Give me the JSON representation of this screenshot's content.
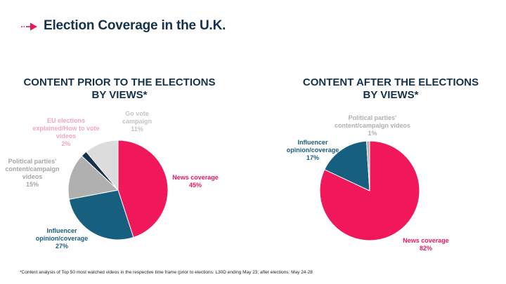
{
  "slide": {
    "title": "Election Coverage in the U.K.",
    "accent_color": "#e8174f",
    "icon": "arrow-right-icon"
  },
  "footnote": "*Content analysis of Top 50 most watched videos in the respective time frame (prior to elections: L30D ending May 23;  after elections: May 24-28",
  "chart_data": [
    {
      "type": "pie",
      "title": "CONTENT PRIOR TO THE ELECTIONS",
      "title_line2": "BY VIEWS*",
      "slices": [
        {
          "key": "news",
          "label_lines": [
            "News coverage"
          ],
          "value": 45,
          "value_label": "45%",
          "color": "#f0185a",
          "label_color": "#f0185a"
        },
        {
          "key": "influencer",
          "label_lines": [
            "Influencer",
            "opinion/coverage"
          ],
          "value": 27,
          "value_label": "27%",
          "color": "#175f7e",
          "label_color": "#175f7e"
        },
        {
          "key": "parties",
          "label_lines": [
            "Political parties'",
            "content/campaign",
            "videos"
          ],
          "value": 15,
          "value_label": "15%",
          "color": "#b0b0b0",
          "label_color": "#a6a6a6"
        },
        {
          "key": "eu",
          "label_lines": [
            "EU elections",
            "explained/How to vote",
            "videos"
          ],
          "value": 2,
          "value_label": "2%",
          "color": "#16324a",
          "label_color": "#f4a6bd"
        },
        {
          "key": "govote",
          "label_lines": [
            "Go vote",
            "campaign"
          ],
          "value": 11,
          "value_label": "11%",
          "color": "#dcdcdc",
          "label_color": "#c4c4c4"
        }
      ]
    },
    {
      "type": "pie",
      "title": "CONTENT AFTER THE ELECTIONS",
      "title_line2": "BY VIEWS*",
      "slices": [
        {
          "key": "news",
          "label_lines": [
            "News coverage"
          ],
          "value": 82,
          "value_label": "82%",
          "color": "#f0185a",
          "label_color": "#f0185a"
        },
        {
          "key": "influencer",
          "label_lines": [
            "Influencer",
            "opinion/coverage"
          ],
          "value": 17,
          "value_label": "17%",
          "color": "#175f7e",
          "label_color": "#175f7e"
        },
        {
          "key": "parties",
          "label_lines": [
            "Political parties'",
            "content/campaign videos"
          ],
          "value": 1,
          "value_label": "1%",
          "color": "#b0b0b0",
          "label_color": "#b0b0b0"
        }
      ]
    }
  ]
}
